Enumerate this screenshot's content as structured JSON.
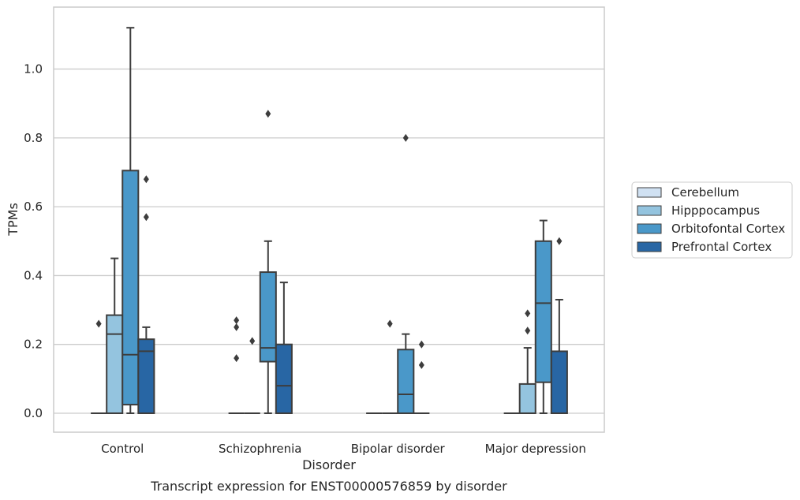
{
  "caption": "Transcript expression for ENST00000576859 by disorder",
  "chart_data": {
    "type": "box",
    "xlabel": "Disorder",
    "ylabel": "TPMs",
    "categories": [
      "Control",
      "Schizophrenia",
      "Bipolar disorder",
      "Major depression"
    ],
    "ylim": [
      -0.055,
      1.18
    ],
    "yticks": [
      0.0,
      0.2,
      0.4,
      0.6,
      0.8,
      1.0
    ],
    "ytick_labels": [
      "0.0",
      "0.2",
      "0.4",
      "0.6",
      "0.8",
      "1.0"
    ],
    "grid": "horizontal",
    "legend_position": "center-right",
    "series": [
      {
        "name": "Cerebellum",
        "color": "#d0e1f2",
        "boxes": [
          {
            "q1": 0,
            "median": 0,
            "q3": 0,
            "whislo": 0,
            "whishi": 0,
            "fliers": [
              0.26
            ]
          },
          {
            "q1": 0,
            "median": 0,
            "q3": 0,
            "whislo": 0,
            "whishi": 0,
            "fliers": [
              0.16,
              0.25,
              0.27
            ]
          },
          {
            "q1": 0,
            "median": 0,
            "q3": 0,
            "whislo": 0,
            "whishi": 0,
            "fliers": []
          },
          {
            "q1": 0,
            "median": 0,
            "q3": 0,
            "whislo": 0,
            "whishi": 0,
            "fliers": []
          }
        ]
      },
      {
        "name": "Hipppocampus",
        "color": "#94c4df",
        "boxes": [
          {
            "q1": 0,
            "median": 0.23,
            "q3": 0.285,
            "whislo": 0,
            "whishi": 0.45,
            "fliers": []
          },
          {
            "q1": 0,
            "median": 0,
            "q3": 0,
            "whislo": 0,
            "whishi": 0,
            "fliers": [
              0.21
            ]
          },
          {
            "q1": 0,
            "median": 0,
            "q3": 0,
            "whislo": 0,
            "whishi": 0,
            "fliers": [
              0.26
            ]
          },
          {
            "q1": 0,
            "median": 0,
            "q3": 0.085,
            "whislo": 0,
            "whishi": 0.19,
            "fliers": [
              0.24,
              0.29
            ]
          }
        ]
      },
      {
        "name": "Orbitofontal Cortex",
        "color": "#4a98c9",
        "boxes": [
          {
            "q1": 0.025,
            "median": 0.17,
            "q3": 0.705,
            "whislo": 0,
            "whishi": 1.12,
            "fliers": []
          },
          {
            "q1": 0.15,
            "median": 0.19,
            "q3": 0.41,
            "whislo": 0,
            "whishi": 0.5,
            "fliers": [
              0.87
            ]
          },
          {
            "q1": 0,
            "median": 0.055,
            "q3": 0.185,
            "whislo": 0,
            "whishi": 0.23,
            "fliers": [
              0.8
            ]
          },
          {
            "q1": 0.09,
            "median": 0.32,
            "q3": 0.5,
            "whislo": 0,
            "whishi": 0.56,
            "fliers": []
          }
        ]
      },
      {
        "name": "Prefrontal Cortex",
        "color": "#2866a4",
        "boxes": [
          {
            "q1": 0,
            "median": 0.18,
            "q3": 0.215,
            "whislo": 0,
            "whishi": 0.25,
            "fliers": [
              0.57,
              0.68
            ]
          },
          {
            "q1": 0,
            "median": 0.08,
            "q3": 0.2,
            "whislo": 0,
            "whishi": 0.38,
            "fliers": []
          },
          {
            "q1": 0,
            "median": 0,
            "q3": 0,
            "whislo": 0,
            "whishi": 0,
            "fliers": [
              0.14,
              0.2
            ]
          },
          {
            "q1": 0,
            "median": 0,
            "q3": 0.18,
            "whislo": 0,
            "whishi": 0.33,
            "fliers": [
              0.5
            ]
          }
        ]
      }
    ]
  }
}
